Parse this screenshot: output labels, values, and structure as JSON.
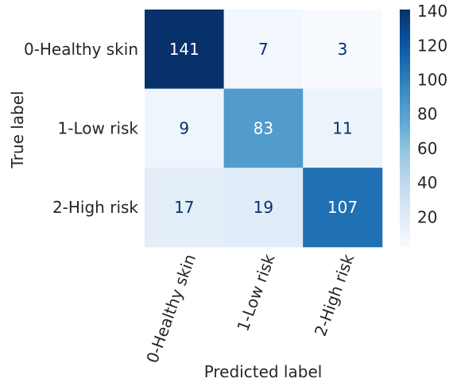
{
  "chart_data": {
    "type": "heatmap",
    "title": "",
    "xlabel": "Predicted label",
    "ylabel": "True label",
    "x_categories": [
      "0-Healthy skin",
      "1-Low risk",
      "2-High risk"
    ],
    "y_categories": [
      "0-Healthy skin",
      "1-Low risk",
      "2-High risk"
    ],
    "values": [
      [
        141,
        7,
        3
      ],
      [
        9,
        83,
        11
      ],
      [
        17,
        19,
        107
      ]
    ],
    "colormap": "Blues",
    "colorbar": {
      "range": [
        3,
        141
      ],
      "ticks": [
        20,
        40,
        60,
        80,
        100,
        120,
        140
      ]
    },
    "x_tick_rotation_deg": 70,
    "grid": false
  }
}
